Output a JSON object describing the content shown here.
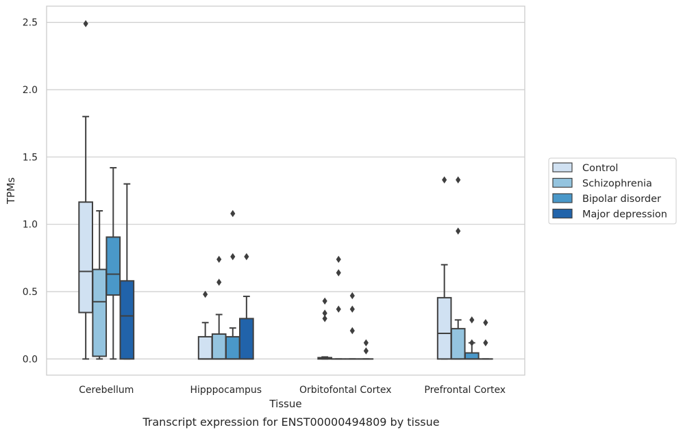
{
  "chart_data": {
    "type": "box",
    "title": "",
    "caption": "Transcript expression for ENST00000494809 by tissue",
    "xlabel": "Tissue",
    "ylabel": "TPMs",
    "ylim": [
      -0.12,
      2.62
    ],
    "yticks": [
      0.0,
      0.5,
      1.0,
      1.5,
      2.0,
      2.5
    ],
    "ytick_labels": [
      "0.0",
      "0.5",
      "1.0",
      "1.5",
      "2.0",
      "2.5"
    ],
    "grid": "horizontal",
    "legend_position": "right",
    "categories": [
      "Cerebellum",
      "Hipppocampus",
      "Orbitofontal Cortex",
      "Prefrontal Cortex"
    ],
    "series": [
      {
        "name": "Control",
        "color": "#d0e1f2",
        "boxes": [
          {
            "whislo": 0.0,
            "q1": 0.345,
            "med": 0.65,
            "q3": 1.165,
            "whishi": 1.8,
            "fliers": [
              2.49
            ]
          },
          {
            "whislo": 0.0,
            "q1": 0.0,
            "med": 0.0,
            "q3": 0.165,
            "whishi": 0.27,
            "fliers": [
              0.48
            ]
          },
          {
            "whislo": 0.0,
            "q1": 0.0,
            "med": 0.005,
            "q3": 0.01,
            "whishi": 0.015,
            "fliers": [
              0.3,
              0.34,
              0.43
            ]
          },
          {
            "whislo": 0.0,
            "q1": 0.0,
            "med": 0.19,
            "q3": 0.455,
            "whishi": 0.7,
            "fliers": [
              1.33
            ]
          }
        ]
      },
      {
        "name": "Schizophrenia",
        "color": "#94c4df",
        "boxes": [
          {
            "whislo": 0.0,
            "q1": 0.02,
            "med": 0.425,
            "q3": 0.665,
            "whishi": 1.1,
            "fliers": []
          },
          {
            "whislo": 0.0,
            "q1": 0.0,
            "med": 0.0,
            "q3": 0.185,
            "whishi": 0.33,
            "fliers": [
              0.57,
              0.74
            ]
          },
          {
            "whislo": 0.0,
            "q1": 0.0,
            "med": 0.0,
            "q3": 0.0,
            "whishi": 0.0,
            "fliers": [
              0.37,
              0.64,
              0.74
            ]
          },
          {
            "whislo": 0.0,
            "q1": 0.0,
            "med": 0.0,
            "q3": 0.225,
            "whishi": 0.29,
            "fliers": [
              0.95,
              1.33
            ]
          }
        ]
      },
      {
        "name": "Bipolar disorder",
        "color": "#4a98c9",
        "boxes": [
          {
            "whislo": 0.0,
            "q1": 0.475,
            "med": 0.63,
            "q3": 0.905,
            "whishi": 1.42,
            "fliers": []
          },
          {
            "whislo": 0.0,
            "q1": 0.0,
            "med": 0.0,
            "q3": 0.165,
            "whishi": 0.23,
            "fliers": [
              0.76,
              1.08
            ]
          },
          {
            "whislo": 0.0,
            "q1": 0.0,
            "med": 0.0,
            "q3": 0.0,
            "whishi": 0.0,
            "fliers": [
              0.21,
              0.37,
              0.47
            ]
          },
          {
            "whislo": 0.0,
            "q1": 0.0,
            "med": 0.0,
            "q3": 0.045,
            "whishi": 0.12,
            "fliers": [
              0.12,
              0.29
            ]
          }
        ]
      },
      {
        "name": "Major depression",
        "color": "#2163aa",
        "boxes": [
          {
            "whislo": 0.0,
            "q1": 0.0,
            "med": 0.32,
            "q3": 0.58,
            "whishi": 1.3,
            "fliers": []
          },
          {
            "whislo": 0.0,
            "q1": 0.0,
            "med": 0.0,
            "q3": 0.3,
            "whishi": 0.465,
            "fliers": [
              0.76
            ]
          },
          {
            "whislo": 0.0,
            "q1": 0.0,
            "med": 0.0,
            "q3": 0.0,
            "whishi": 0.0,
            "fliers": [
              0.06,
              0.12
            ]
          },
          {
            "whislo": 0.0,
            "q1": 0.0,
            "med": 0.0,
            "q3": 0.0,
            "whishi": 0.0,
            "fliers": [
              0.12,
              0.27
            ]
          }
        ]
      }
    ]
  }
}
